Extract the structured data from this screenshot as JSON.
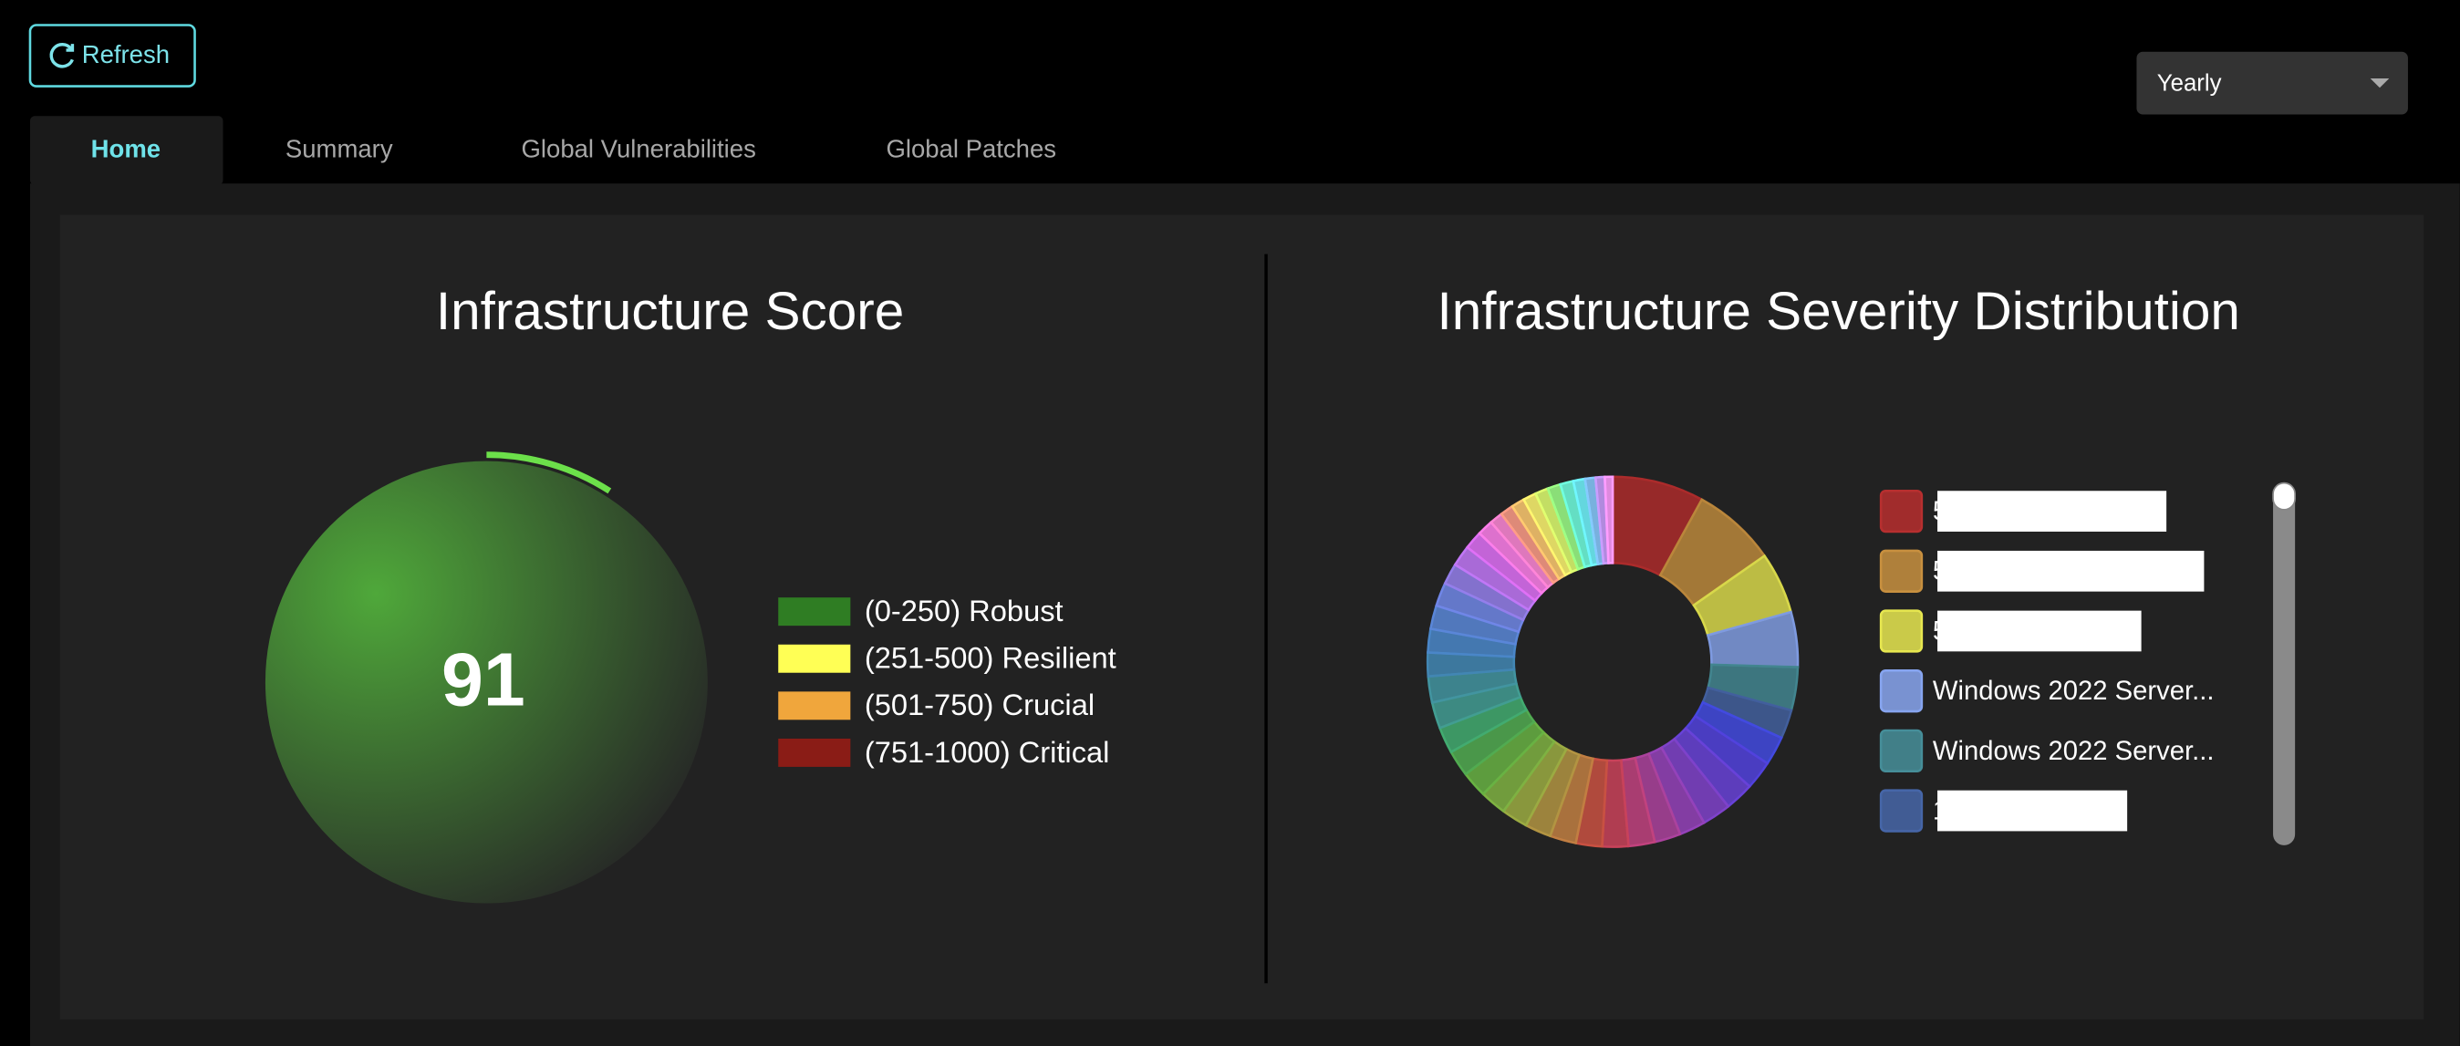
{
  "toolbar": {
    "refresh": "Refresh",
    "period": "Yearly"
  },
  "tabs": [
    "Home",
    "Summary",
    "Global Vulnerabilities",
    "Global Patches"
  ],
  "active_tab": 0,
  "chart_data": [
    {
      "type": "gauge",
      "title": "Infrastructure Score",
      "value": 91,
      "range": [
        0,
        1000
      ],
      "color": "#6ce04a",
      "legend": [
        {
          "label": "(0-250) Robust",
          "color": "#2f7d23"
        },
        {
          "label": "(251-500) Resilient",
          "color": "#ffff55"
        },
        {
          "label": "(501-750) Crucial",
          "color": "#f0a63c"
        },
        {
          "label": "(751-1000) Critical",
          "color": "#8a1c16"
        }
      ]
    },
    {
      "type": "donut",
      "title": "Infrastructure Severity Distribution",
      "categories": [
        "5",
        "5",
        "5",
        "Windows 2022 Server...",
        "Windows 2022 Server...",
        "1",
        null,
        null,
        null,
        null,
        null,
        null,
        null,
        null,
        null,
        null,
        null,
        null,
        null,
        null,
        null,
        null,
        null,
        null,
        null,
        null,
        null,
        null,
        null,
        null,
        null,
        null,
        null,
        null,
        null,
        null,
        null,
        null,
        null,
        null,
        null,
        null,
        null
      ],
      "values": [
        7,
        6.4,
        4.7,
        4.2,
        3.3,
        2.2,
        2.2,
        2.2,
        2.2,
        2.2,
        2,
        2,
        2,
        2,
        2,
        2,
        2,
        2,
        2,
        2,
        2,
        2,
        2,
        2,
        1.8,
        1.8,
        1.8,
        1.8,
        1.6,
        1.6,
        1.4,
        1.2,
        1,
        1,
        1,
        1,
        1,
        1,
        1,
        0.9,
        0.8,
        0.7,
        0.6
      ],
      "colors": [
        "#7a1f1f",
        "#85602a",
        "#9a9a35",
        "#5a6ea0",
        "#2f5f66",
        "#2f4470",
        "#2f35a0",
        "#3a2f9e",
        "#4a2f9a",
        "#5a2f90",
        "#6a2f85",
        "#7a2f70",
        "#8a2f5a",
        "#8f2f40",
        "#8f3a2f",
        "#8a5a2f",
        "#7f6a2f",
        "#6f7a2f",
        "#5a7f2f",
        "#4a7f30",
        "#3a7a3a",
        "#2f7a50",
        "#2f7068",
        "#2f6a72",
        "#2f6080",
        "#35608f",
        "#40609a",
        "#5060a5",
        "#6a5aa8",
        "#8a55b0",
        "#a050b0",
        "#b55aa8",
        "#c0609a",
        "#c07060",
        "#c09050",
        "#c0b050",
        "#a0c050",
        "#70c060",
        "#50c0a0",
        "#50b0d0",
        "#6090e0",
        "#9070e0",
        "#e070d0"
      ]
    }
  ]
}
